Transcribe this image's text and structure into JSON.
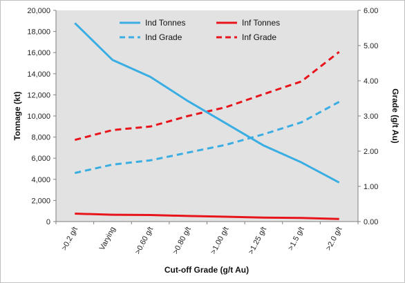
{
  "chart_data": {
    "type": "line",
    "xlabel": "Cut-off Grade (g/t Au)",
    "ylabel": "Tonnage (kt)",
    "y2label": "Grade (g/t Au)",
    "categories": [
      ">0.2 g/t",
      "Varying",
      ">0.60 g/t",
      ">0.80 g/t",
      ">1.00 g/t",
      ">1.25 g/t",
      ">1.5 g/t",
      ">2.0 g/t"
    ],
    "ylim": [
      0,
      20000
    ],
    "y2lim": [
      0,
      6
    ],
    "yticks": [
      "0",
      "2,000",
      "4,000",
      "6,000",
      "8,000",
      "10,000",
      "12,000",
      "14,000",
      "16,000",
      "18,000",
      "20,000"
    ],
    "y2ticks": [
      "0.00",
      "1.00",
      "2.00",
      "3.00",
      "4.00",
      "5.00",
      "6.00"
    ],
    "grid": false,
    "legend_position": "top",
    "series": [
      {
        "name": "Ind Tonnes",
        "axis": "left",
        "style": "solid",
        "color": "#3aaee3",
        "values": [
          18800,
          15300,
          13700,
          11400,
          9300,
          7200,
          5600,
          3700
        ]
      },
      {
        "name": "Inf Tonnes",
        "axis": "left",
        "style": "solid",
        "color": "#e8141b",
        "values": [
          750,
          650,
          620,
          530,
          460,
          380,
          340,
          250
        ]
      },
      {
        "name": "Ind Grade",
        "axis": "right",
        "style": "dashed",
        "color": "#3aaee3",
        "values": [
          1.38,
          1.62,
          1.74,
          1.96,
          2.18,
          2.48,
          2.82,
          3.4
        ]
      },
      {
        "name": "Inf Grade",
        "axis": "right",
        "style": "dashed",
        "color": "#e8141b",
        "values": [
          2.32,
          2.6,
          2.7,
          3.0,
          3.25,
          3.62,
          3.98,
          4.82
        ]
      }
    ]
  }
}
